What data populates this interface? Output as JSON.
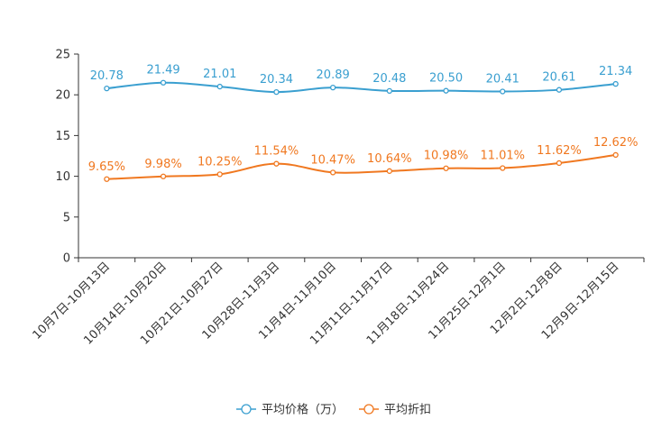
{
  "chart_data": {
    "type": "line",
    "categories": [
      "10月7日-10月13日",
      "10月14日-10月20日",
      "10月21日-10月27日",
      "10月28日-11月3日",
      "11月4日-11月10日",
      "11月11日-11月17日",
      "11月18日-11月24日",
      "11月25日-12月1日",
      "12月2日-12月8日",
      "12月9日-12月15日"
    ],
    "series": [
      {
        "name": "平均价格（万）",
        "color": "#3a9fd0",
        "values": [
          20.78,
          21.49,
          21.01,
          20.34,
          20.89,
          20.48,
          20.5,
          20.41,
          20.61,
          21.34
        ],
        "labels": [
          "20.78",
          "21.49",
          "21.01",
          "20.34",
          "20.89",
          "20.48",
          "20.50",
          "20.41",
          "20.61",
          "21.34"
        ]
      },
      {
        "name": "平均折扣",
        "color": "#f07820",
        "values": [
          9.65,
          9.98,
          10.25,
          11.54,
          10.47,
          10.64,
          10.98,
          11.01,
          11.62,
          12.62
        ],
        "labels": [
          "9.65%",
          "9.98%",
          "10.25%",
          "11.54%",
          "10.47%",
          "10.64%",
          "10.98%",
          "11.01%",
          "11.62%",
          "12.62%"
        ]
      }
    ],
    "ylim": [
      0,
      25
    ],
    "yticks": [
      0,
      5,
      10,
      15,
      20,
      25
    ],
    "title": "",
    "xlabel": "",
    "ylabel": "",
    "grid": false,
    "legend_position": "bottom-center"
  }
}
